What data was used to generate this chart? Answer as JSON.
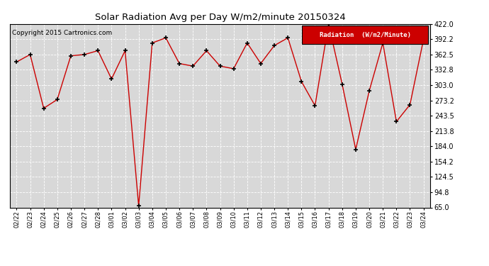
{
  "title": "Solar Radiation Avg per Day W/m2/minute 20150324",
  "copyright": "Copyright 2015 Cartronics.com",
  "legend_label": "Radiation  (W/m2/Minute)",
  "legend_bg": "#cc0000",
  "legend_text_color": "#ffffff",
  "background_color": "#ffffff",
  "plot_bg_color": "#d8d8d8",
  "line_color": "#cc0000",
  "marker_color": "#000000",
  "grid_color": "#ffffff",
  "ylim": [
    65.0,
    422.0
  ],
  "yticks": [
    65.0,
    94.8,
    124.5,
    154.2,
    184.0,
    213.8,
    243.5,
    273.2,
    303.0,
    332.8,
    362.5,
    392.2,
    422.0
  ],
  "ytick_labels": [
    "65.0",
    "94.8",
    "124.5",
    "154.2",
    "184.0",
    "213.8",
    "243.5",
    "273.2",
    "303.0",
    "332.8",
    "362.5",
    "392.2",
    "422.0"
  ],
  "dates": [
    "02/22",
    "02/23",
    "02/24",
    "02/25",
    "02/26",
    "02/27",
    "02/28",
    "03/01",
    "03/02",
    "03/03",
    "03/04",
    "03/05",
    "03/06",
    "03/07",
    "03/08",
    "03/09",
    "03/10",
    "03/11",
    "03/12",
    "03/13",
    "03/14",
    "03/15",
    "03/16",
    "03/17",
    "03/18",
    "03/19",
    "03/20",
    "03/21",
    "03/22",
    "03/23",
    "03/24"
  ],
  "values": [
    348.0,
    362.5,
    258.0,
    275.0,
    360.0,
    362.5,
    370.0,
    315.0,
    370.0,
    68.0,
    385.0,
    395.0,
    345.0,
    340.0,
    370.0,
    340.0,
    335.0,
    385.0,
    345.0,
    380.0,
    395.0,
    310.0,
    263.0,
    422.0,
    305.0,
    178.0,
    292.0,
    385.0,
    232.0,
    265.0,
    392.0
  ]
}
